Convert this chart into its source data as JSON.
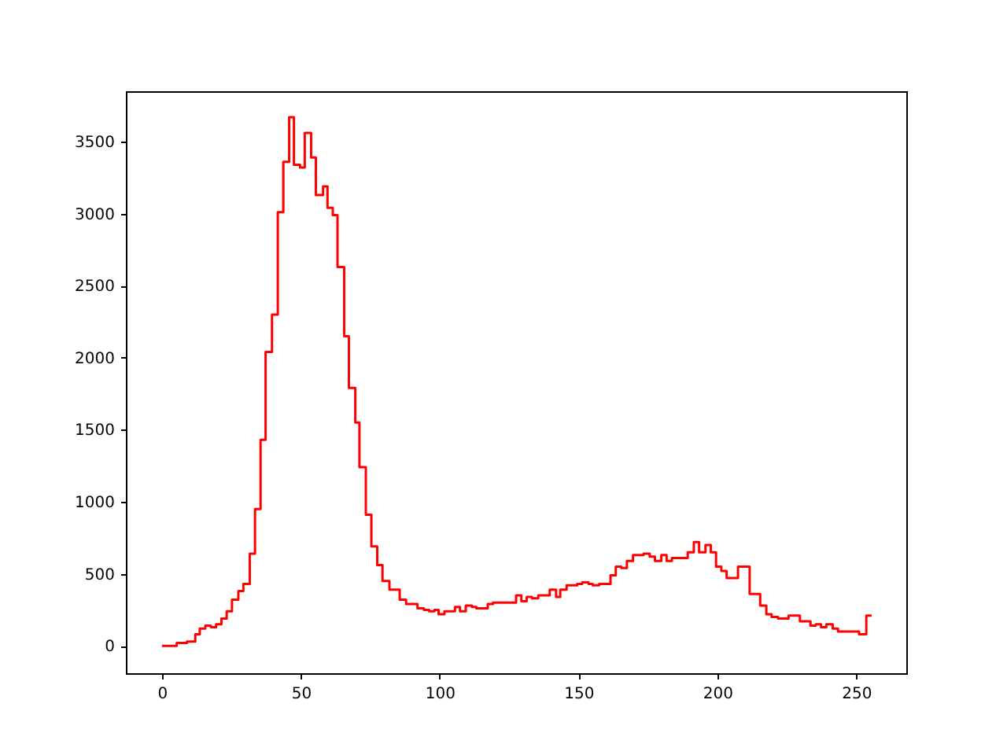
{
  "chart_data": {
    "type": "step",
    "color": "#ff0000",
    "x": [
      0,
      5.3,
      9,
      12,
      13.6,
      15.6,
      17.6,
      19.5,
      21.4,
      23.3,
      25.2,
      27.5,
      29.3,
      31.6,
      33.5,
      35.5,
      37.3,
      39.6,
      41.7,
      43.7,
      45.8,
      47.5,
      49.7,
      51.4,
      53.7,
      55.4,
      58,
      59.6,
      61.5,
      63.2,
      65.6,
      67.3,
      69.6,
      71.1,
      73.4,
      75.4,
      77.5,
      79.4,
      81.9,
      85.6,
      87.9,
      92,
      94.3,
      96.2,
      98.1,
      99.6,
      101.7,
      105.5,
      107.3,
      109.4,
      111.6,
      113.2,
      117.3,
      119.2,
      127.5,
      129.4,
      131.3,
      133.2,
      135.5,
      139.6,
      141.9,
      143.4,
      145.7,
      149.5,
      151.3,
      153.6,
      155.1,
      157.4,
      161.5,
      163.4,
      165.4,
      167.4,
      169.6,
      173.4,
      175.6,
      177.5,
      179.8,
      181.7,
      183.6,
      189.3,
      191.5,
      193.4,
      195.7,
      197.6,
      199.5,
      201.4,
      203.3,
      207.4,
      211.6,
      215.4,
      217.6,
      219.5,
      221.8,
      225.6,
      229.7,
      233.5,
      235.4,
      237.3,
      239.2,
      241.5,
      243.4,
      251,
      253.6,
      255.5
    ],
    "values": [
      0,
      20,
      30,
      80,
      120,
      140,
      130,
      150,
      190,
      240,
      320,
      380,
      430,
      640,
      950,
      1430,
      2040,
      2300,
      3010,
      3360,
      3670,
      3340,
      3320,
      3560,
      3390,
      3130,
      3190,
      3040,
      2990,
      2630,
      2150,
      1790,
      1550,
      1240,
      910,
      690,
      560,
      450,
      390,
      320,
      290,
      260,
      250,
      240,
      250,
      220,
      240,
      270,
      240,
      280,
      270,
      260,
      290,
      300,
      350,
      310,
      340,
      330,
      350,
      390,
      340,
      390,
      420,
      430,
      440,
      430,
      420,
      430,
      490,
      550,
      540,
      590,
      630,
      640,
      620,
      590,
      630,
      590,
      610,
      650,
      720,
      650,
      700,
      650,
      550,
      520,
      470,
      550,
      360,
      280,
      220,
      200,
      190,
      210,
      170,
      140,
      150,
      130,
      150,
      120,
      100,
      80,
      210,
      210
    ],
    "xlim": [
      -13,
      268
    ],
    "ylim": [
      -190,
      3850
    ],
    "xticks": [
      0,
      50,
      100,
      150,
      200,
      250
    ],
    "yticks": [
      0,
      500,
      1000,
      1500,
      2000,
      2500,
      3000,
      3500
    ],
    "grid": false
  }
}
